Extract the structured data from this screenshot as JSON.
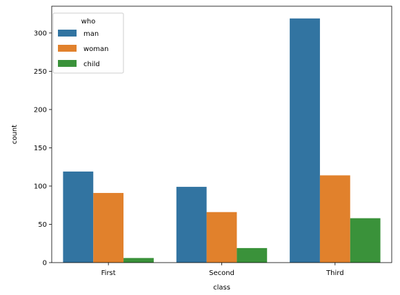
{
  "chart_data": {
    "type": "bar",
    "categories": [
      "First",
      "Second",
      "Third"
    ],
    "series": [
      {
        "name": "man",
        "values": [
          119,
          99,
          319
        ],
        "color": "#3274a1"
      },
      {
        "name": "woman",
        "values": [
          91,
          66,
          114
        ],
        "color": "#e1812c"
      },
      {
        "name": "child",
        "values": [
          6,
          19,
          58
        ],
        "color": "#3a923a"
      }
    ],
    "xlabel": "class",
    "ylabel": "count",
    "ylim": [
      0,
      335
    ],
    "yticks": [
      0,
      50,
      100,
      150,
      200,
      250,
      300
    ],
    "grid": false,
    "legend": {
      "title": "who",
      "placement": "top-left"
    }
  }
}
